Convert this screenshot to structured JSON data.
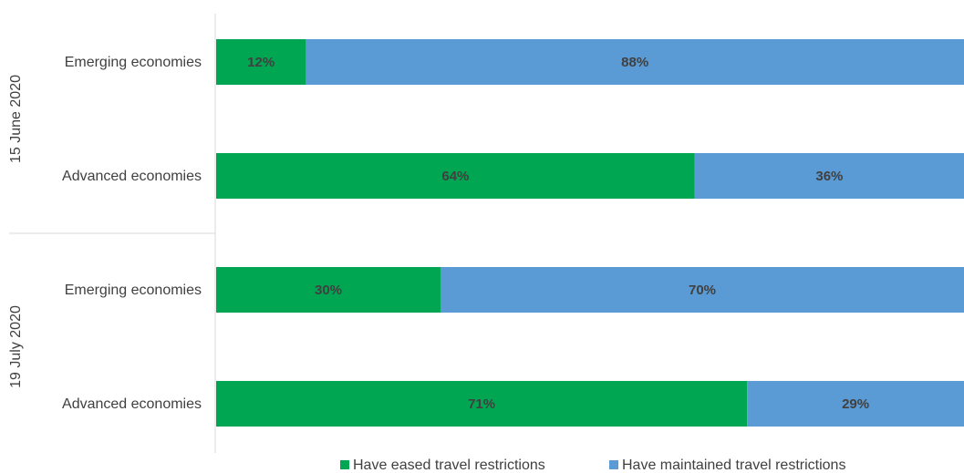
{
  "chart_data": {
    "type": "bar",
    "orientation": "horizontal",
    "stacked": true,
    "normalized_percent": true,
    "groups": [
      {
        "label": "15 June 2020",
        "categories": [
          "Emerging economies",
          "Advanced economies"
        ]
      },
      {
        "label": "19 July 2020",
        "categories": [
          "Emerging economies",
          "Advanced economies"
        ]
      }
    ],
    "categories": [
      "Emerging economies",
      "Advanced economies",
      "Emerging economies",
      "Advanced economies"
    ],
    "series": [
      {
        "name": "Have eased travel restrictions",
        "color": "#00a651",
        "values": [
          12,
          64,
          30,
          71
        ]
      },
      {
        "name": "Have maintained travel restrictions",
        "color": "#5b9bd5",
        "values": [
          88,
          36,
          70,
          29
        ]
      }
    ],
    "data_labels": [
      [
        "12%",
        "64%",
        "30%",
        "71%"
      ],
      [
        "88%",
        "36%",
        "70%",
        "29%"
      ]
    ],
    "xlim": [
      0,
      100
    ],
    "grid": false,
    "legend_position": "bottom"
  }
}
